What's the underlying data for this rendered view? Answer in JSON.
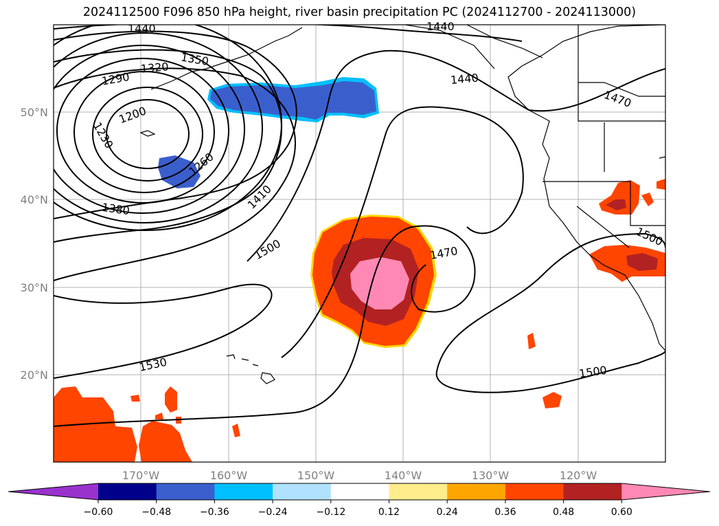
{
  "title": "2024112500 F096 850 hPa height, river basin precipitation PC (2024112700 - 2024113000)",
  "lat_labels": [
    "50°N",
    "40°N",
    "30°N",
    "20°N"
  ],
  "lon_labels": [
    "170°W",
    "160°W",
    "150°W",
    "140°W",
    "130°W",
    "120°W"
  ],
  "contour_labels": [
    "1440",
    "1290",
    "1320",
    "1350",
    "1200",
    "1230",
    "1260",
    "1380",
    "1410",
    "1500",
    "1470",
    "1530",
    "1440",
    "1470",
    "1500",
    "1500",
    "1440"
  ],
  "colorbar": {
    "colors": [
      "#9932cc",
      "#00008b",
      "#3a5fcd",
      "#00bfff",
      "#b0e2ff",
      "#ffffff",
      "#ffec8b",
      "#ffa500",
      "#ff4500",
      "#b22222",
      "#ff89b4"
    ],
    "tick_labels": [
      "−0.60",
      "−0.48",
      "−0.36",
      "−0.24",
      "−0.12",
      "0.12",
      "0.24",
      "0.36",
      "0.48",
      "0.60"
    ]
  }
}
